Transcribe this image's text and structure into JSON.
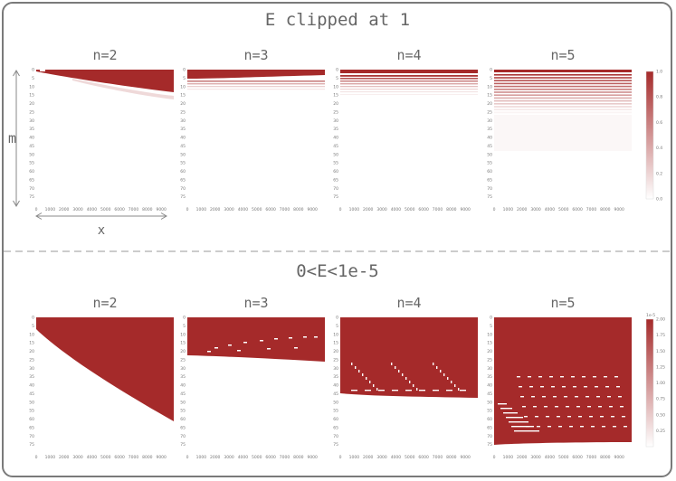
{
  "top_section": {
    "title": "E clipped at 1"
  },
  "bottom_section": {
    "title": "0<E<1e-5"
  },
  "axes": {
    "m_label": "m",
    "x_label": "x"
  },
  "colors": {
    "fill": "#a52a2a",
    "background": "#ffffff",
    "text": "#666666",
    "divider": "#bbbbbb"
  },
  "chart_data": [
    {
      "type": "heatmap",
      "title": "n=2",
      "section": "top",
      "x_ticks": [
        "0",
        "1000",
        "2000",
        "3000",
        "4000",
        "5000",
        "6000",
        "7000",
        "8000",
        "9000"
      ],
      "y_ticks": [
        "0",
        "5",
        "10",
        "15",
        "20",
        "25",
        "30",
        "35",
        "40",
        "45",
        "50",
        "55",
        "60",
        "65",
        "70",
        "75"
      ],
      "xlim": [
        0,
        9900
      ],
      "ylim": [
        0,
        80
      ]
    },
    {
      "type": "heatmap",
      "title": "n=3",
      "section": "top",
      "x_ticks": [
        "0",
        "1000",
        "2000",
        "3000",
        "4000",
        "5000",
        "6000",
        "7000",
        "8000",
        "9000"
      ],
      "y_ticks": [
        "0",
        "5",
        "10",
        "15",
        "20",
        "25",
        "30",
        "35",
        "40",
        "45",
        "50",
        "55",
        "60",
        "65",
        "70",
        "75"
      ],
      "xlim": [
        0,
        9900
      ],
      "ylim": [
        0,
        80
      ]
    },
    {
      "type": "heatmap",
      "title": "n=4",
      "section": "top",
      "x_ticks": [
        "0",
        "1000",
        "2000",
        "3000",
        "4000",
        "5000",
        "6000",
        "7000",
        "8000",
        "9000"
      ],
      "y_ticks": [
        "0",
        "5",
        "10",
        "15",
        "20",
        "25",
        "30",
        "35",
        "40",
        "45",
        "50",
        "55",
        "60",
        "65",
        "70",
        "75"
      ],
      "xlim": [
        0,
        9900
      ],
      "ylim": [
        0,
        80
      ]
    },
    {
      "type": "heatmap",
      "title": "n=5",
      "section": "top",
      "x_ticks": [
        "0",
        "1000",
        "2000",
        "3000",
        "4000",
        "5000",
        "6000",
        "7000",
        "8000",
        "9000"
      ],
      "y_ticks": [
        "0",
        "5",
        "10",
        "15",
        "20",
        "25",
        "30",
        "35",
        "40",
        "45",
        "50",
        "55",
        "60",
        "65",
        "70",
        "75"
      ],
      "xlim": [
        0,
        9900
      ],
      "ylim": [
        0,
        80
      ],
      "colorbar": {
        "ticks": [
          "0.0",
          "0.2",
          "0.4",
          "0.6",
          "0.8",
          "1.0"
        ],
        "range": [
          0,
          1
        ]
      }
    },
    {
      "type": "heatmap",
      "title": "n=2",
      "section": "bottom",
      "x_ticks": [
        "0",
        "1000",
        "2000",
        "3000",
        "4000",
        "5000",
        "6000",
        "7000",
        "8000",
        "9000"
      ],
      "y_ticks": [
        "0",
        "5",
        "10",
        "15",
        "20",
        "25",
        "30",
        "35",
        "40",
        "45",
        "50",
        "55",
        "60",
        "65",
        "70",
        "75"
      ],
      "xlim": [
        0,
        9900
      ],
      "ylim": [
        0,
        80
      ]
    },
    {
      "type": "heatmap",
      "title": "n=3",
      "section": "bottom",
      "x_ticks": [
        "0",
        "1000",
        "2000",
        "3000",
        "4000",
        "5000",
        "6000",
        "7000",
        "8000",
        "9000"
      ],
      "y_ticks": [
        "0",
        "5",
        "10",
        "15",
        "20",
        "25",
        "30",
        "35",
        "40",
        "45",
        "50",
        "55",
        "60",
        "65",
        "70",
        "75"
      ],
      "xlim": [
        0,
        9900
      ],
      "ylim": [
        0,
        80
      ]
    },
    {
      "type": "heatmap",
      "title": "n=4",
      "section": "bottom",
      "x_ticks": [
        "0",
        "1000",
        "2000",
        "3000",
        "4000",
        "5000",
        "6000",
        "7000",
        "8000",
        "9000"
      ],
      "y_ticks": [
        "0",
        "5",
        "10",
        "15",
        "20",
        "25",
        "30",
        "35",
        "40",
        "45",
        "50",
        "55",
        "60",
        "65",
        "70",
        "75"
      ],
      "xlim": [
        0,
        9900
      ],
      "ylim": [
        0,
        80
      ]
    },
    {
      "type": "heatmap",
      "title": "n=5",
      "section": "bottom",
      "x_ticks": [
        "0",
        "1000",
        "2000",
        "3000",
        "4000",
        "5000",
        "6000",
        "7000",
        "8000",
        "9000"
      ],
      "y_ticks": [
        "0",
        "5",
        "10",
        "15",
        "20",
        "25",
        "30",
        "35",
        "40",
        "45",
        "50",
        "55",
        "60",
        "65",
        "70",
        "75"
      ],
      "xlim": [
        0,
        9900
      ],
      "ylim": [
        0,
        80
      ],
      "colorbar": {
        "ticks": [
          "0.25",
          "0.50",
          "0.75",
          "1.00",
          "1.25",
          "1.50",
          "1.75",
          "2.00"
        ],
        "range": [
          0,
          2
        ],
        "multiplier": "1e-5"
      }
    }
  ]
}
